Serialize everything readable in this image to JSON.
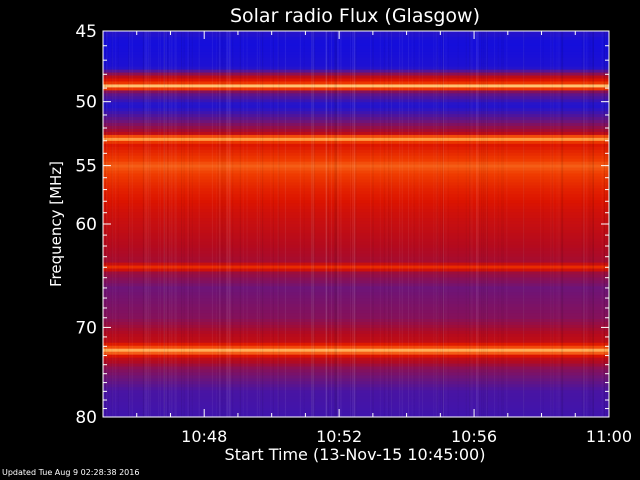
{
  "chart_data": {
    "type": "heatmap",
    "title": "Solar radio Flux (Glasgow)",
    "xlabel": "Start Time (13-Nov-15 10:45:00)",
    "ylabel": "Frequency [MHz]",
    "x_range_minutes": [
      0,
      15
    ],
    "x_ticks": [
      {
        "minute": 3,
        "label": "10:48"
      },
      {
        "minute": 7,
        "label": "10:52"
      },
      {
        "minute": 11,
        "label": "10:56"
      },
      {
        "minute": 15,
        "label": "11:00"
      }
    ],
    "y_range_mhz": [
      45,
      80
    ],
    "y_scale": "log",
    "y_ticks": [
      45,
      50,
      55,
      60,
      70,
      80
    ],
    "colormap": "red-temperature",
    "colors": {
      "low": "#0a0aff",
      "mid": "#cc0000",
      "high": "#ffe08a",
      "background": "#000000"
    },
    "spectrum_profile_mhz": [
      {
        "f": 45.0,
        "level": 0.15
      },
      {
        "f": 45.8,
        "level": 0.05
      },
      {
        "f": 47.5,
        "level": 0.1
      },
      {
        "f": 48.6,
        "level": 0.7
      },
      {
        "f": 48.9,
        "level": 1.0
      },
      {
        "f": 49.3,
        "level": 0.3
      },
      {
        "f": 50.3,
        "level": 0.12
      },
      {
        "f": 51.5,
        "level": 0.3
      },
      {
        "f": 52.4,
        "level": 0.45
      },
      {
        "f": 52.8,
        "level": 0.95
      },
      {
        "f": 53.3,
        "level": 0.6
      },
      {
        "f": 55.0,
        "level": 0.8
      },
      {
        "f": 57.0,
        "level": 0.65
      },
      {
        "f": 59.0,
        "level": 0.55
      },
      {
        "f": 62.0,
        "level": 0.45
      },
      {
        "f": 63.5,
        "level": 0.42
      },
      {
        "f": 64.0,
        "level": 0.7
      },
      {
        "f": 64.5,
        "level": 0.4
      },
      {
        "f": 66.0,
        "level": 0.3
      },
      {
        "f": 69.0,
        "level": 0.35
      },
      {
        "f": 71.5,
        "level": 0.5
      },
      {
        "f": 72.5,
        "level": 0.95
      },
      {
        "f": 73.2,
        "level": 0.5
      },
      {
        "f": 74.5,
        "level": 0.35
      },
      {
        "f": 77.0,
        "level": 0.22
      },
      {
        "f": 80.0,
        "level": 0.2
      }
    ]
  },
  "footer": {
    "updated": "Updated Tue Aug  9 02:28:38 2016"
  }
}
